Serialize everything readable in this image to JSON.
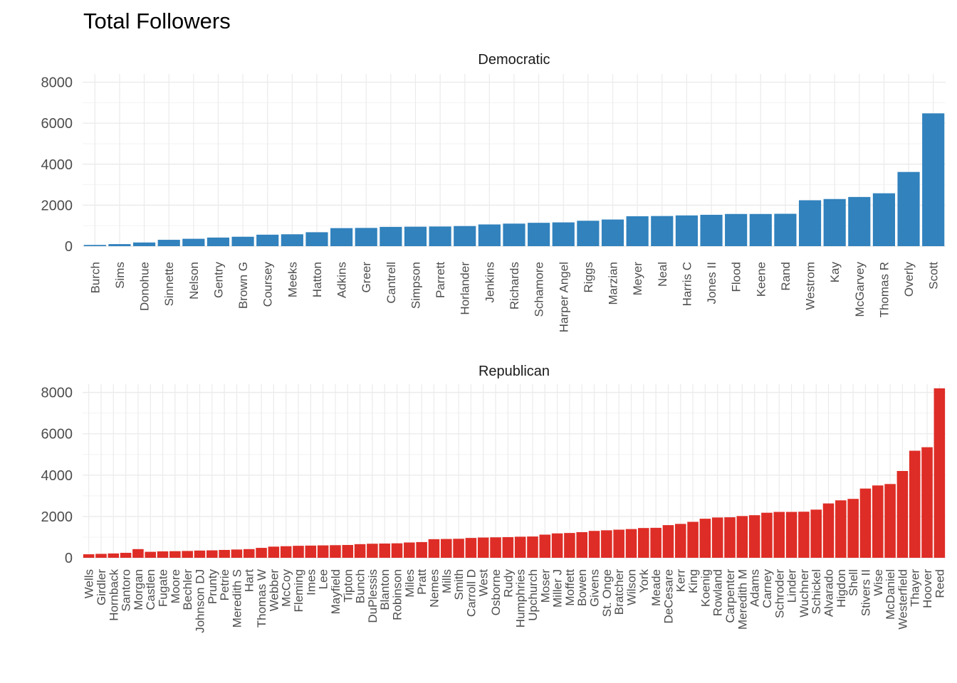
{
  "chart_data": {
    "type": "bar",
    "title": "Total Followers",
    "xlabel": "",
    "ylabel": "",
    "ylim": [
      0,
      8000
    ],
    "yticks": [
      0,
      2000,
      4000,
      6000,
      8000
    ],
    "grid": true,
    "legend": "none",
    "series": [
      {
        "name": "Democratic",
        "color": "#3182bd",
        "categories": [
          "Burch",
          "Sims",
          "Donohue",
          "Sinnette",
          "Nelson",
          "Gentry",
          "Brown G",
          "Coursey",
          "Meeks",
          "Hatton",
          "Adkins",
          "Greer",
          "Cantrell",
          "Simpson",
          "Parrett",
          "Horlander",
          "Jenkins",
          "Richards",
          "Schamore",
          "Harper Angel",
          "Riggs",
          "Marzian",
          "Meyer",
          "Neal",
          "Harris C",
          "Jones II",
          "Flood",
          "Keene",
          "Rand",
          "Westrom",
          "Kay",
          "McGarvey",
          "Thomas R",
          "Overly",
          "Scott"
        ],
        "values": [
          60,
          100,
          180,
          310,
          360,
          420,
          460,
          560,
          580,
          680,
          880,
          890,
          940,
          950,
          960,
          980,
          1060,
          1100,
          1140,
          1160,
          1240,
          1300,
          1460,
          1470,
          1500,
          1530,
          1570,
          1570,
          1580,
          2240,
          2300,
          2400,
          2580,
          3620,
          6480
        ]
      },
      {
        "name": "Republican",
        "color": "#de2d26",
        "categories": [
          "Wells",
          "Girdler",
          "Hornback",
          "Santoro",
          "Morgan",
          "Castlen",
          "Fugate",
          "Moore",
          "Bechler",
          "Johnson DJ",
          "Prunty",
          "Petrie",
          "Meredith S",
          "Hart",
          "Thomas W",
          "Webber",
          "McCoy",
          "Fleming",
          "Imes",
          "Lee",
          "Mayfield",
          "Tipton",
          "Bunch",
          "DuPlessis",
          "Blanton",
          "Robinson",
          "Miles",
          "Pratt",
          "Nemes",
          "Mills",
          "Smith",
          "Carroll D",
          "West",
          "Osborne",
          "Rudy",
          "Humphries",
          "Upchurch",
          "Moser",
          "Miller J",
          "Moffett",
          "Bowen",
          "Givens",
          "St. Onge",
          "Bratcher",
          "Wilson",
          "York",
          "Meade",
          "DeCesare",
          "Kerr",
          "King",
          "Koenig",
          "Rowland",
          "Carpenter",
          "Meredith M",
          "Adams",
          "Carney",
          "Schroder",
          "Linder",
          "Wuchner",
          "Schickel",
          "Alvarado",
          "Higdon",
          "Shell",
          "Stivers II",
          "Wise",
          "McDaniel",
          "Westerfield",
          "Thayer",
          "Hoover",
          "Reed"
        ],
        "values": [
          170,
          190,
          210,
          240,
          420,
          290,
          310,
          320,
          330,
          350,
          360,
          380,
          400,
          420,
          480,
          540,
          560,
          580,
          590,
          600,
          610,
          620,
          660,
          680,
          690,
          700,
          740,
          760,
          900,
          910,
          920,
          960,
          980,
          990,
          1000,
          1020,
          1030,
          1120,
          1180,
          1200,
          1240,
          1300,
          1330,
          1360,
          1390,
          1440,
          1450,
          1580,
          1640,
          1740,
          1890,
          1950,
          1960,
          2020,
          2060,
          2180,
          2220,
          2220,
          2230,
          2330,
          2630,
          2780,
          2850,
          3350,
          3500,
          3570,
          4200,
          5180,
          5350,
          8200
        ]
      }
    ]
  }
}
